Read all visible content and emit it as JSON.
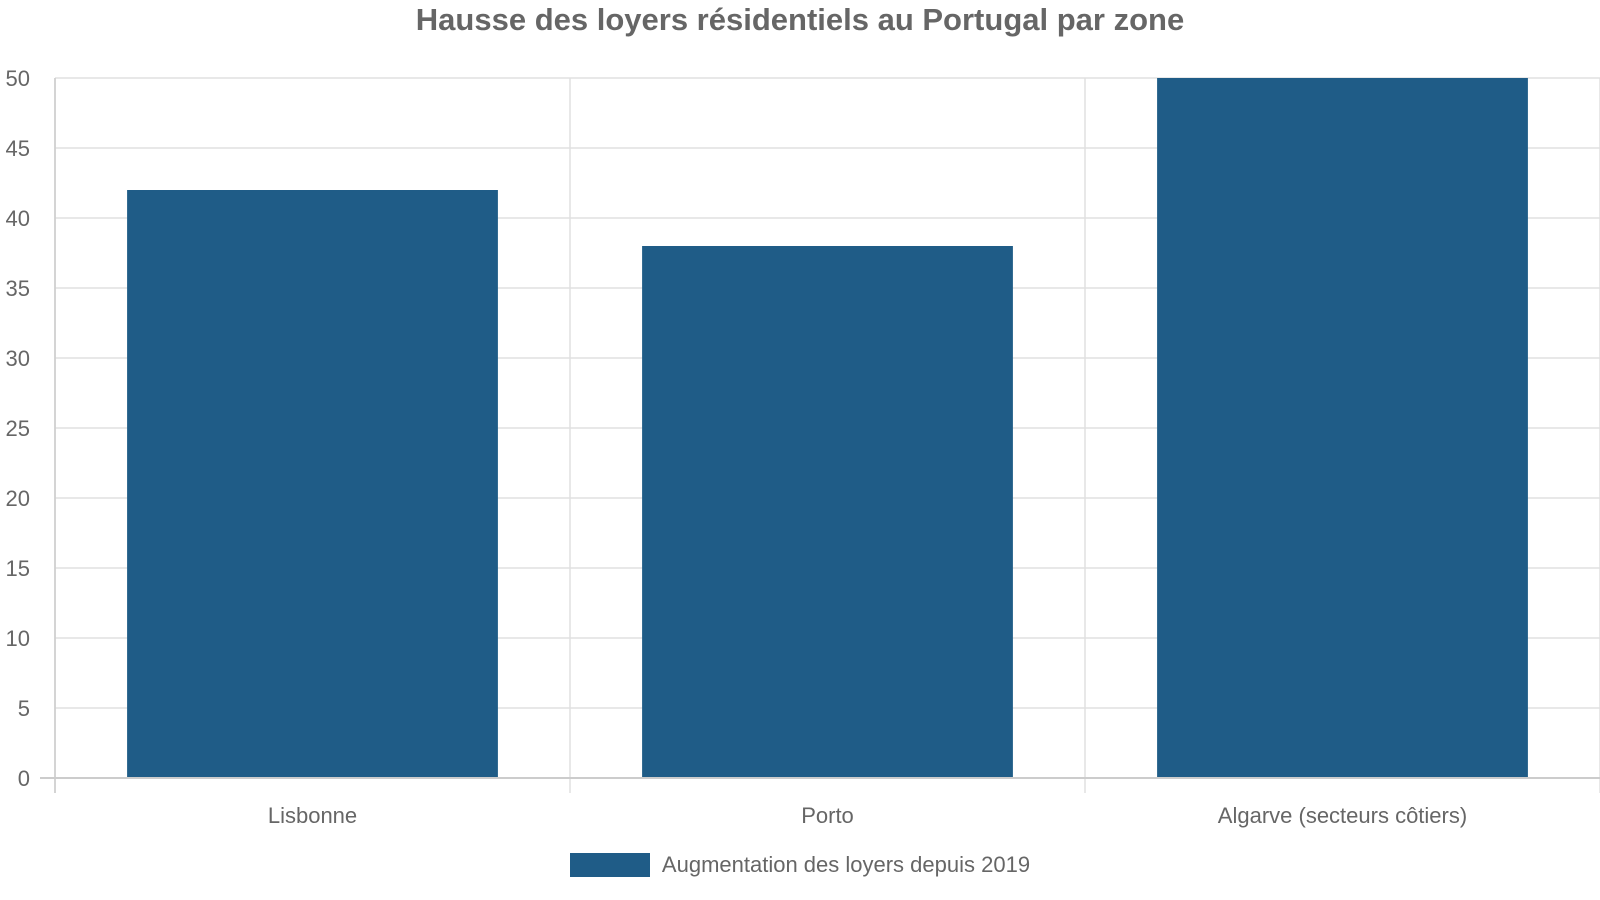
{
  "chart_data": {
    "type": "bar",
    "title": "Hausse des loyers résidentiels au Portugal par zone",
    "categories": [
      "Lisbonne",
      "Porto",
      "Algarve (secteurs côtiers)"
    ],
    "series": [
      {
        "name": "Augmentation des loyers depuis 2019",
        "values": [
          42,
          38,
          50
        ],
        "color": "#1f5c87"
      }
    ],
    "yticks": [
      0,
      5,
      10,
      15,
      20,
      25,
      30,
      35,
      40,
      45,
      50
    ],
    "ylim": [
      0,
      50
    ],
    "grid": true,
    "legend_position": "bottom"
  }
}
